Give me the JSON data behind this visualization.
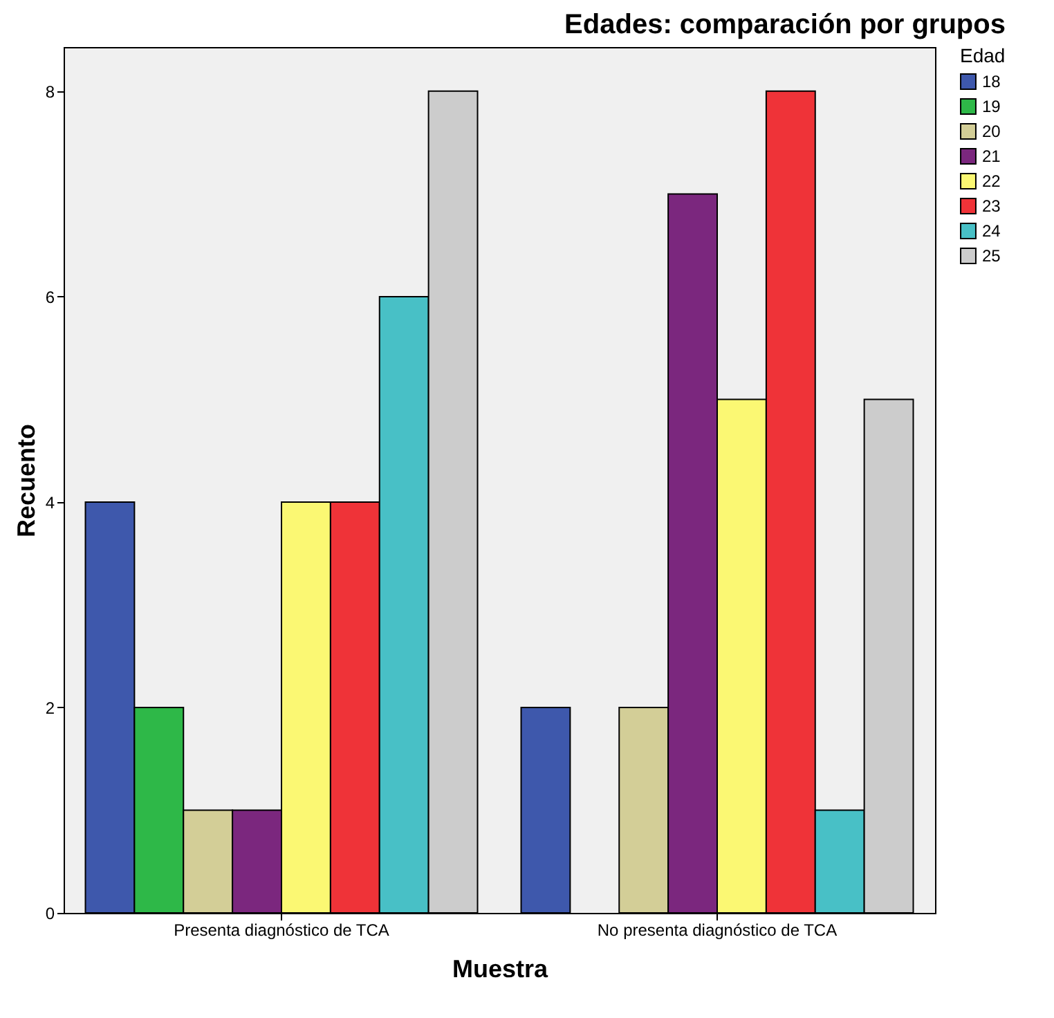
{
  "chart_data": {
    "type": "bar",
    "title": "Edades: comparación por grupos",
    "xlabel": "Muestra",
    "ylabel": "Recuento",
    "legend_title": "Edad",
    "legend": "right",
    "grid": false,
    "categories": [
      "Presenta diagnóstico de TCA",
      "No presenta diagnóstico de TCA"
    ],
    "ylim": [
      0,
      8.43
    ],
    "yticks": [
      0,
      2,
      4,
      6,
      8
    ],
    "series": [
      {
        "name": "18",
        "color": "#3e58ac",
        "values": [
          4,
          2
        ]
      },
      {
        "name": "19",
        "color": "#2eb848",
        "values": [
          2,
          null
        ]
      },
      {
        "name": "20",
        "color": "#d3ce97",
        "values": [
          1,
          2
        ]
      },
      {
        "name": "21",
        "color": "#7b277e",
        "values": [
          1,
          7
        ]
      },
      {
        "name": "22",
        "color": "#fbf873",
        "values": [
          4,
          5
        ]
      },
      {
        "name": "23",
        "color": "#ef3338",
        "values": [
          4,
          8
        ]
      },
      {
        "name": "24",
        "color": "#48c0c6",
        "values": [
          6,
          1
        ]
      },
      {
        "name": "25",
        "color": "#cccccc",
        "values": [
          8,
          5
        ]
      }
    ]
  }
}
